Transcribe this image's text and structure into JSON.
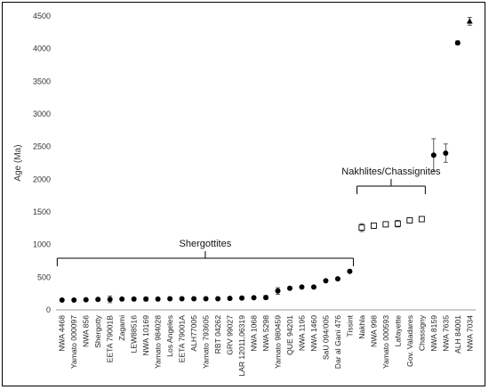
{
  "chart_data": {
    "type": "scatter",
    "ylabel": "Age (Ma)",
    "xlabel": "",
    "ylim": [
      0,
      4500
    ],
    "yticks": [
      0,
      500,
      1000,
      1500,
      2000,
      2500,
      3000,
      3500,
      4000,
      4500
    ],
    "grid": false,
    "legend": "none",
    "groups": [
      {
        "label": "Shergottites",
        "from": "NWA 4468",
        "to": "Tissint"
      },
      {
        "label": "Nakhlites/Chassignites",
        "from": "Nakhla",
        "to": "Chassigny"
      }
    ],
    "points": [
      {
        "name": "NWA 4468",
        "value": 150,
        "err": 10,
        "marker": "circle"
      },
      {
        "name": "Yamato 000097",
        "value": 150,
        "err": 10,
        "marker": "circle"
      },
      {
        "name": "NWA 856",
        "value": 155,
        "err": 10,
        "marker": "circle"
      },
      {
        "name": "Shergotty",
        "value": 160,
        "err": 10,
        "marker": "circle"
      },
      {
        "name": "EETA 79001B",
        "value": 160,
        "err": 50,
        "marker": "circle"
      },
      {
        "name": "Zagami",
        "value": 165,
        "err": 10,
        "marker": "circle"
      },
      {
        "name": "LEW88516",
        "value": 165,
        "err": 10,
        "marker": "circle"
      },
      {
        "name": "NWA 10169",
        "value": 165,
        "err": 30,
        "marker": "circle"
      },
      {
        "name": "Yamato 984028",
        "value": 165,
        "err": 10,
        "marker": "circle"
      },
      {
        "name": "Los Angeles",
        "value": 170,
        "err": 10,
        "marker": "circle"
      },
      {
        "name": "EETA 79001A",
        "value": 170,
        "err": 10,
        "marker": "circle"
      },
      {
        "name": "ALH77005",
        "value": 170,
        "err": 10,
        "marker": "circle"
      },
      {
        "name": "Yamato 793605",
        "value": 170,
        "err": 10,
        "marker": "circle"
      },
      {
        "name": "RBT 04262",
        "value": 170,
        "err": 10,
        "marker": "circle"
      },
      {
        "name": "GRV 99027",
        "value": 175,
        "err": 10,
        "marker": "circle"
      },
      {
        "name": "LAR 12011,06319",
        "value": 180,
        "err": 10,
        "marker": "circle"
      },
      {
        "name": "NWA 1068",
        "value": 185,
        "err": 10,
        "marker": "circle"
      },
      {
        "name": "NWA 5298",
        "value": 190,
        "err": 30,
        "marker": "circle"
      },
      {
        "name": "Yamato 980459",
        "value": 290,
        "err": 50,
        "marker": "circle"
      },
      {
        "name": "QUE 94201",
        "value": 330,
        "err": 15,
        "marker": "circle"
      },
      {
        "name": "NWA 1195",
        "value": 350,
        "err": 10,
        "marker": "circle"
      },
      {
        "name": "NWA 1460",
        "value": 350,
        "err": 10,
        "marker": "circle"
      },
      {
        "name": "SaU 094/005",
        "value": 445,
        "err": 15,
        "marker": "circle"
      },
      {
        "name": "Dar al Gani 476",
        "value": 475,
        "err": 15,
        "marker": "circle"
      },
      {
        "name": "Tissint",
        "value": 590,
        "err": 15,
        "marker": "circle"
      },
      {
        "name": "Nakhla",
        "value": 1260,
        "err": 60,
        "marker": "square"
      },
      {
        "name": "NWA 998",
        "value": 1290,
        "err": 40,
        "marker": "square"
      },
      {
        "name": "Yamato 000593",
        "value": 1310,
        "err": 20,
        "marker": "square"
      },
      {
        "name": "Lafayette",
        "value": 1320,
        "err": 50,
        "marker": "square"
      },
      {
        "name": "Gov. Valadares",
        "value": 1370,
        "err": 20,
        "marker": "square"
      },
      {
        "name": "Chassigny",
        "value": 1390,
        "err": 20,
        "marker": "square"
      },
      {
        "name": "NWA 8159",
        "value": 2370,
        "err": 250,
        "marker": "circle"
      },
      {
        "name": "NWA 7635",
        "value": 2400,
        "err": 140,
        "marker": "circle"
      },
      {
        "name": "ALH 84001",
        "value": 4090,
        "err": 30,
        "marker": "circle"
      },
      {
        "name": "NWA 7034",
        "value": 4420,
        "err": 60,
        "marker": "triangle"
      }
    ]
  },
  "colors": {
    "marker": "#000000",
    "square_fill": "#ffffff",
    "axis": "#999999",
    "bracket": "#000000"
  }
}
